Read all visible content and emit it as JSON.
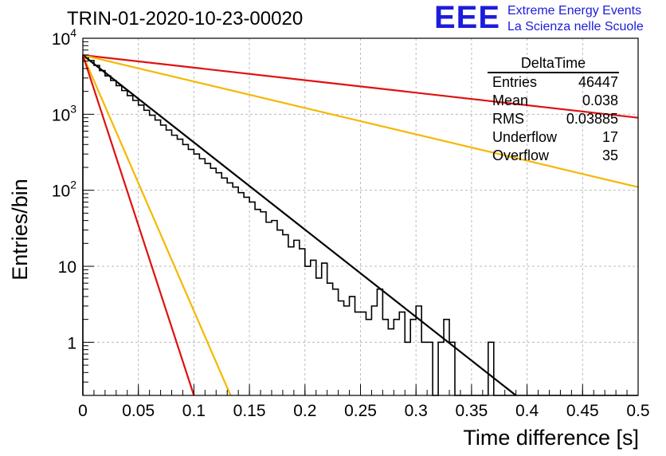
{
  "title": "TRIN-01-2020-10-23-00020",
  "logo": {
    "mark": "EEE",
    "line1": "Extreme Energy Events",
    "line2": "La Scienza nelle Scuole",
    "color": "#1c1cdc"
  },
  "stats": {
    "title": "DeltaTime",
    "rows": [
      {
        "label": "Entries",
        "value": "46447"
      },
      {
        "label": "Mean",
        "value": "0.038"
      },
      {
        "label": "RMS",
        "value": "0.03885"
      },
      {
        "label": "Underflow",
        "value": "17"
      },
      {
        "label": "Overflow",
        "value": "35"
      }
    ]
  },
  "chart_data": {
    "type": "line",
    "xlabel": "Time difference [s]",
    "ylabel": "Entries/bin",
    "xlim": [
      0,
      0.5
    ],
    "ylim": [
      0.2,
      10000
    ],
    "y_scale": "log",
    "grid": true,
    "x_ticks": [
      "0",
      "0.05",
      "0.1",
      "0.15",
      "0.2",
      "0.25",
      "0.3",
      "0.35",
      "0.4",
      "0.45",
      "0.5"
    ],
    "y_ticks": [
      {
        "value": 1,
        "label": "1"
      },
      {
        "value": 10,
        "label": "10"
      },
      {
        "value": 100,
        "label": "10^2"
      },
      {
        "value": 1000,
        "label": "10^3"
      },
      {
        "value": 10000,
        "label": "10^4"
      }
    ],
    "histogram": {
      "bin_width": 0.005,
      "counts": [
        6000,
        5100,
        4400,
        3750,
        3200,
        2780,
        2380,
        2050,
        1760,
        1520,
        1320,
        1130,
        970,
        840,
        720,
        620,
        530,
        470,
        400,
        345,
        300,
        260,
        225,
        195,
        170,
        145,
        125,
        110,
        93,
        81,
        70,
        56,
        52,
        38,
        40,
        30,
        26,
        18,
        22,
        17,
        10,
        12,
        7,
        11,
        6,
        5,
        3.5,
        3,
        4,
        2.5,
        2.5,
        2,
        3,
        5,
        2,
        1.5,
        2,
        2.5,
        1,
        2,
        3,
        1,
        1,
        0.1,
        1,
        2,
        1,
        0.1,
        0,
        0,
        0,
        0,
        0,
        1,
        0,
        0,
        0,
        0,
        0,
        0,
        0,
        0,
        0,
        0,
        0,
        0,
        0,
        0,
        0,
        0,
        0,
        0,
        0,
        0,
        0,
        0,
        0,
        0,
        0,
        0
      ],
      "comment_free": true,
      "color": "#000000"
    },
    "series": [
      {
        "values": [
          [
            0,
            6000
          ],
          [
            0.5,
            900
          ]
        ],
        "color": "#e01010"
      },
      {
        "values": [
          [
            0,
            6000
          ],
          [
            0.5,
            110
          ]
        ],
        "color": "#f5b800"
      },
      {
        "values": [
          [
            0,
            6000
          ],
          [
            0.39,
            0.2
          ]
        ],
        "color": "#000000"
      },
      {
        "values": [
          [
            0,
            6000
          ],
          [
            0.133,
            0.2
          ]
        ],
        "color": "#f5b800"
      },
      {
        "values": [
          [
            0,
            6000
          ],
          [
            0.1,
            0.2
          ]
        ],
        "color": "#e01010"
      }
    ]
  }
}
